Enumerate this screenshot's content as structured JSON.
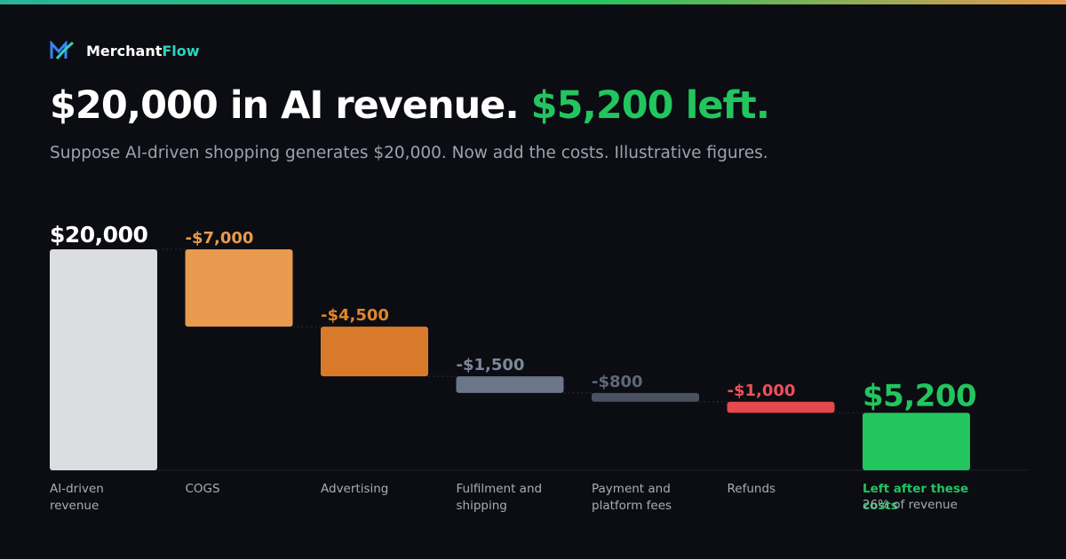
{
  "brand": {
    "name": "Merchant",
    "accent": "Flow"
  },
  "chart_data": {
    "type": "waterfall",
    "title": [
      "$20,000 in AI revenue.",
      "$5,200 left."
    ],
    "subtitle": "Suppose AI-driven shopping generates $20,000. Now add the costs. Illustrative figures.",
    "categories": [
      "AI-driven revenue",
      "COGS",
      "Advertising",
      "Fulfilment and shipping",
      "Payment and platform fees",
      "Refunds",
      "Left after these costs"
    ],
    "values": [
      20000,
      -7000,
      -4500,
      -1500,
      -800,
      -1000,
      5200
    ],
    "value_labels": [
      "$20,000",
      "-$7,000",
      "-$4,500",
      "-$1,500",
      "-$800",
      "-$1,000",
      "$5,200"
    ],
    "measures": [
      "absolute",
      "relative",
      "relative",
      "relative",
      "relative",
      "relative",
      "total"
    ],
    "colors": [
      "#dcdde0",
      "#e89a4f",
      "#d97a2b",
      "#6b7689",
      "#4a5262",
      "#e5484d",
      "#22c55e"
    ],
    "value_label_colors": [
      "#ffffff",
      "#e89a4f",
      "#e0862f",
      "#7d879a",
      "#5f6878",
      "#ef4f5a",
      "#22c55e"
    ],
    "total_note": "26% of revenue"
  }
}
